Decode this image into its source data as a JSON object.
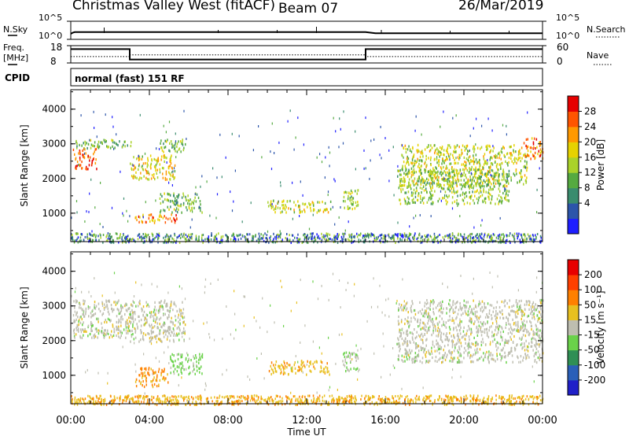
{
  "header": {
    "title": "Christmas Valley West (fitACF)",
    "beam": "Beam 07",
    "date": "26/Mar/2019"
  },
  "top_panels": {
    "nsky_label": "N.Sky",
    "nsky_ticks": [
      "10^5",
      "10^0"
    ],
    "nsearch_label": "N.Search",
    "nsearch_ticks": [
      "10^5",
      "10^0"
    ],
    "freq_label": "Freq.",
    "freq_unit": "[MHz]",
    "freq_ticks": [
      "18",
      "8"
    ],
    "nave_label": "Nave",
    "nave_ticks": [
      "60",
      "0"
    ],
    "cpid_label": "CPID",
    "cpid_text": "normal (fast) 151 RF"
  },
  "power_panel": {
    "ylabel": "Slant Range [km]",
    "yticks": [
      "4000",
      "3000",
      "2000",
      "1000"
    ],
    "colorbar_label": "Power [dB]",
    "colorbar_ticks": [
      "28",
      "24",
      "20",
      "16",
      "12",
      "8",
      "4"
    ],
    "colors": [
      "#1e1eff",
      "#2c55aa",
      "#3a8c6e",
      "#55aa40",
      "#aad22a",
      "#e6d200",
      "#ff9900",
      "#ff5500",
      "#e60000"
    ]
  },
  "velocity_panel": {
    "ylabel": "Slant Range [km]",
    "yticks": [
      "4000",
      "3000",
      "2000",
      "1000"
    ],
    "colorbar_label": "Velocity [m s⁻¹]",
    "colorbar_ticks": [
      "200",
      "100",
      "50",
      "15",
      "-15",
      "-50",
      "-100",
      "-200"
    ],
    "colors": [
      "#2020c8",
      "#2a5fb8",
      "#2f8f55",
      "#6ad24a",
      "#bebeb0",
      "#e8c020",
      "#ff8000",
      "#ff4000",
      "#e80000"
    ]
  },
  "xaxis": {
    "label": "Time UT",
    "ticks": [
      "00:00",
      "04:00",
      "08:00",
      "12:00",
      "16:00",
      "20:00",
      "00:00"
    ]
  },
  "chart_data": {
    "type": "heatmap",
    "title": "Christmas Valley West (fitACF)",
    "xlabel": "Time UT",
    "ylabel": "Slant Range [km]",
    "xlim_hours": [
      0,
      24
    ],
    "ylim_km": [
      180,
      4560
    ],
    "nsky_profile": {
      "t": [
        0,
        0.1,
        0.2,
        15,
        15.5,
        24
      ],
      "level_log10": [
        0.2,
        0.3,
        0.35,
        0.35,
        0.25,
        0.25
      ]
    },
    "frequency_mhz": {
      "t": [
        0,
        3.0,
        3.0,
        15.0,
        15.0,
        24
      ],
      "value": [
        16,
        16,
        10,
        10,
        16,
        16
      ]
    },
    "nave": {
      "t": [
        0,
        3.0,
        3.0,
        15.0,
        15.0,
        24
      ],
      "value": [
        22,
        22,
        28,
        28,
        22,
        22
      ]
    },
    "power_regions": [
      {
        "t0": 0.1,
        "t1": 1.3,
        "r0": 2300,
        "r1": 2900,
        "p": 24
      },
      {
        "t0": 0.2,
        "t1": 3.1,
        "r0": 2900,
        "r1": 3150,
        "p": 12
      },
      {
        "t0": 3.0,
        "t1": 5.3,
        "r0": 2000,
        "r1": 2700,
        "p": 18
      },
      {
        "t0": 4.5,
        "t1": 5.8,
        "r0": 2800,
        "r1": 3150,
        "p": 12
      },
      {
        "t0": 3.2,
        "t1": 5.5,
        "r0": 750,
        "r1": 1000,
        "p": 22
      },
      {
        "t0": 4.5,
        "t1": 6.7,
        "r0": 1050,
        "r1": 1600,
        "p": 12
      },
      {
        "t0": 10.0,
        "t1": 13.2,
        "r0": 1050,
        "r1": 1400,
        "p": 16
      },
      {
        "t0": 13.8,
        "t1": 14.6,
        "r0": 1150,
        "r1": 1700,
        "p": 14
      },
      {
        "t0": 16.8,
        "t1": 23.2,
        "r0": 1800,
        "r1": 3000,
        "p": 16
      },
      {
        "t0": 16.6,
        "t1": 22.3,
        "r0": 1300,
        "r1": 2300,
        "p": 14
      },
      {
        "t0": 23.0,
        "t1": 24.0,
        "r0": 2600,
        "r1": 3200,
        "p": 22
      }
    ],
    "velocity_regions": [
      {
        "t0": 0.1,
        "t1": 3.1,
        "r0": 2100,
        "r1": 3200,
        "v": 0
      },
      {
        "t0": 3.0,
        "t1": 5.8,
        "r0": 2000,
        "r1": 3200,
        "v": 0
      },
      {
        "t0": 3.2,
        "t1": 5.0,
        "r0": 700,
        "r1": 1250,
        "v": -60
      },
      {
        "t0": 5.0,
        "t1": 6.7,
        "r0": 1050,
        "r1": 1650,
        "v": 30
      },
      {
        "t0": 10.0,
        "t1": 13.2,
        "r0": 1050,
        "r1": 1450,
        "v": -40
      },
      {
        "t0": 13.8,
        "t1": 14.6,
        "r0": 1150,
        "r1": 1700,
        "v": 20
      },
      {
        "t0": 16.6,
        "t1": 24.0,
        "r0": 1400,
        "r1": 3200,
        "v": 0
      }
    ],
    "ground_scatter_band_km": [
      180,
      450
    ]
  }
}
